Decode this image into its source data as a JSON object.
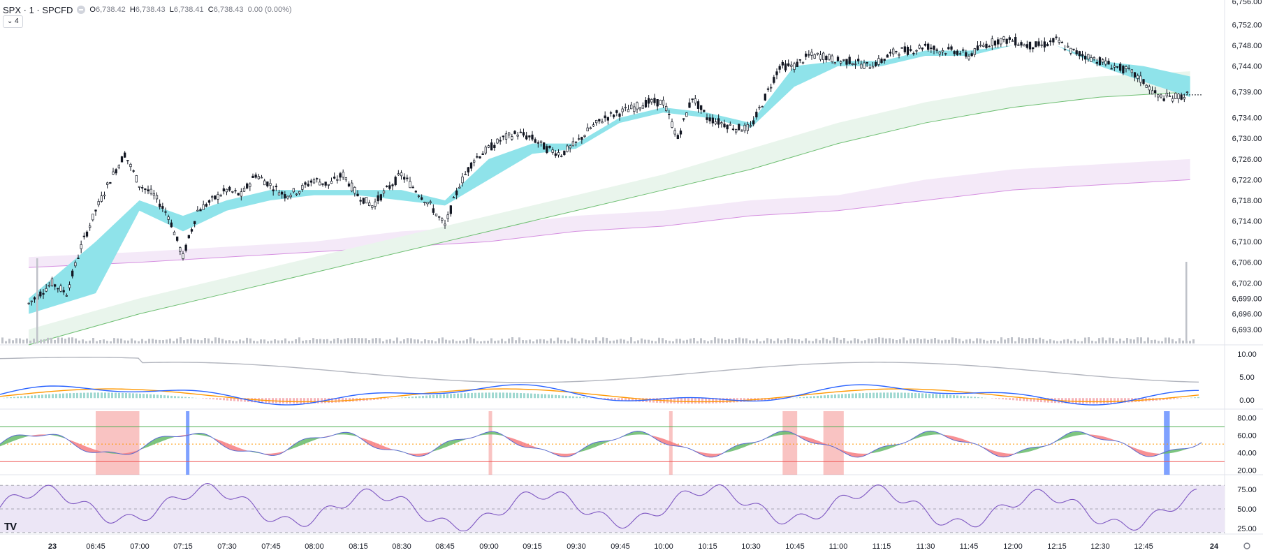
{
  "header": {
    "symbol": "SPX · 1 · SPCFD",
    "ohlc": [
      {
        "k": "O",
        "v": "6,738.42"
      },
      {
        "k": "H",
        "v": "6,738.43"
      },
      {
        "k": "L",
        "v": "6,738.41"
      },
      {
        "k": "C",
        "v": "6,738.43"
      }
    ],
    "change": "0.00 (0.00%)",
    "indicators_toggle": "⌄ 4"
  },
  "logo_text": "TV",
  "time_axis": {
    "labels": [
      "23",
      "06:45",
      "07:00",
      "07:15",
      "07:30",
      "07:45",
      "08:00",
      "08:15",
      "08:30",
      "08:45",
      "09:00",
      "09:15",
      "09:30",
      "09:45",
      "10:00",
      "10:15",
      "10:30",
      "10:45",
      "11:00",
      "11:15",
      "11:30",
      "11:45",
      "12:00",
      "12:15",
      "12:30",
      "12:45",
      "24"
    ],
    "bold_labels": [
      "23",
      "24"
    ]
  },
  "chart_data": [
    {
      "type": "candlestick",
      "price_axis_labels": [
        "6,752.00",
        "6,748.00",
        "6,744.00",
        "6,739.00",
        "6,734.00",
        "6,730.00",
        "6,726.00",
        "6,722.00",
        "6,718.00",
        "6,714.00",
        "6,710.00",
        "6,706.00",
        "6,702.00",
        "6,699.00",
        "6,696.00",
        "6,693.00"
      ],
      "top_partial_label": "6,756.00",
      "ylim": [
        6690,
        6756
      ],
      "x_time_range": [
        "06:22",
        "13:01"
      ],
      "close_path": [
        [
          "06:22",
          6698
        ],
        [
          "06:30",
          6702
        ],
        [
          "06:35",
          6700
        ],
        [
          "06:40",
          6709
        ],
        [
          "06:45",
          6716
        ],
        [
          "06:50",
          6722
        ],
        [
          "06:55",
          6727
        ],
        [
          "07:00",
          6721
        ],
        [
          "07:05",
          6719
        ],
        [
          "07:10",
          6715
        ],
        [
          "07:15",
          6707
        ],
        [
          "07:20",
          6716
        ],
        [
          "07:25",
          6718
        ],
        [
          "07:30",
          6720
        ],
        [
          "07:35",
          6719
        ],
        [
          "07:40",
          6723
        ],
        [
          "07:45",
          6721
        ],
        [
          "07:50",
          6719
        ],
        [
          "07:55",
          6720
        ],
        [
          "08:00",
          6722
        ],
        [
          "08:05",
          6721
        ],
        [
          "08:10",
          6723
        ],
        [
          "08:15",
          6719
        ],
        [
          "08:20",
          6717
        ],
        [
          "08:25",
          6720
        ],
        [
          "08:30",
          6723
        ],
        [
          "08:35",
          6720
        ],
        [
          "08:40",
          6717
        ],
        [
          "08:45",
          6713
        ],
        [
          "08:50",
          6721
        ],
        [
          "08:55",
          6726
        ],
        [
          "09:00",
          6728
        ],
        [
          "09:05",
          6730
        ],
        [
          "09:10",
          6731
        ],
        [
          "09:15",
          6730
        ],
        [
          "09:20",
          6728
        ],
        [
          "09:25",
          6727
        ],
        [
          "09:30",
          6729
        ],
        [
          "09:35",
          6732
        ],
        [
          "09:40",
          6734
        ],
        [
          "09:45",
          6735
        ],
        [
          "09:50",
          6736
        ],
        [
          "09:55",
          6737
        ],
        [
          "10:00",
          6737
        ],
        [
          "10:05",
          6730
        ],
        [
          "10:10",
          6738
        ],
        [
          "10:15",
          6734
        ],
        [
          "10:20",
          6733
        ],
        [
          "10:25",
          6732
        ],
        [
          "10:30",
          6732
        ],
        [
          "10:35",
          6738
        ],
        [
          "10:40",
          6744
        ],
        [
          "10:45",
          6744
        ],
        [
          "10:50",
          6746
        ],
        [
          "10:55",
          6746
        ],
        [
          "11:00",
          6745
        ],
        [
          "11:05",
          6745
        ],
        [
          "11:10",
          6744
        ],
        [
          "11:15",
          6745
        ],
        [
          "11:20",
          6747
        ],
        [
          "11:25",
          6747
        ],
        [
          "11:30",
          6748
        ],
        [
          "11:35",
          6747
        ],
        [
          "11:40",
          6747
        ],
        [
          "11:45",
          6746
        ],
        [
          "11:50",
          6748
        ],
        [
          "11:55",
          6749
        ],
        [
          "12:00",
          6749
        ],
        [
          "12:05",
          6748
        ],
        [
          "12:10",
          6748
        ],
        [
          "12:15",
          6749
        ],
        [
          "12:20",
          6747
        ],
        [
          "12:25",
          6746
        ],
        [
          "12:30",
          6745
        ],
        [
          "12:35",
          6744
        ],
        [
          "12:40",
          6743
        ],
        [
          "12:45",
          6741
        ],
        [
          "12:50",
          6738
        ],
        [
          "12:55",
          6738
        ],
        [
          "13:01",
          6738.43
        ]
      ],
      "ema_band_fast": [
        [
          "06:22",
          6696,
          6699
        ],
        [
          "06:45",
          6700,
          6710
        ],
        [
          "07:00",
          6716,
          6718
        ],
        [
          "07:15",
          6712,
          6715
        ],
        [
          "07:30",
          6716,
          6718
        ],
        [
          "07:45",
          6718,
          6720
        ],
        [
          "08:00",
          6719,
          6720
        ],
        [
          "08:15",
          6719,
          6720
        ],
        [
          "08:30",
          6718,
          6720
        ],
        [
          "08:45",
          6717,
          6718
        ],
        [
          "09:00",
          6722,
          6726
        ],
        [
          "09:15",
          6727,
          6729
        ],
        [
          "09:30",
          6728,
          6729
        ],
        [
          "09:45",
          6733,
          6734
        ],
        [
          "10:00",
          6735,
          6736
        ],
        [
          "10:15",
          6734,
          6735
        ],
        [
          "10:30",
          6732,
          6733
        ],
        [
          "10:45",
          6740,
          6744
        ],
        [
          "11:00",
          6744,
          6745
        ],
        [
          "11:15",
          6744,
          6745
        ],
        [
          "11:30",
          6746,
          6747
        ],
        [
          "11:45",
          6746,
          6747
        ],
        [
          "12:00",
          6748,
          6748
        ],
        [
          "12:15",
          6748,
          6748
        ],
        [
          "12:30",
          6744,
          6745
        ],
        [
          "12:45",
          6741,
          6744
        ],
        [
          "13:01",
          6738,
          6742
        ]
      ],
      "ema_band_slow": [
        [
          "06:22",
          6690,
          6693
        ],
        [
          "07:00",
          6696,
          6699
        ],
        [
          "07:30",
          6700,
          6703
        ],
        [
          "08:00",
          6704,
          6707
        ],
        [
          "08:30",
          6708,
          6711
        ],
        [
          "09:00",
          6712,
          6715
        ],
        [
          "09:30",
          6716,
          6719
        ],
        [
          "10:00",
          6720,
          6723
        ],
        [
          "10:30",
          6724,
          6728
        ],
        [
          "11:00",
          6729,
          6733
        ],
        [
          "11:30",
          6733,
          6737
        ],
        [
          "12:00",
          6736,
          6740
        ],
        [
          "12:30",
          6738,
          6742
        ],
        [
          "13:01",
          6739,
          6743
        ]
      ],
      "ema_band_long": [
        [
          "06:22",
          6705,
          6707
        ],
        [
          "07:00",
          6706,
          6708
        ],
        [
          "07:30",
          6707,
          6709
        ],
        [
          "08:00",
          6708,
          6710
        ],
        [
          "08:30",
          6709,
          6712
        ],
        [
          "09:00",
          6710,
          6713
        ],
        [
          "09:30",
          6712,
          6715
        ],
        [
          "10:00",
          6713,
          6716
        ],
        [
          "10:30",
          6715,
          6718
        ],
        [
          "11:00",
          6716,
          6719
        ],
        [
          "11:30",
          6718,
          6722
        ],
        [
          "12:00",
          6720,
          6724
        ],
        [
          "12:30",
          6721,
          6725
        ],
        [
          "13:01",
          6722,
          6726
        ]
      ]
    },
    {
      "type": "line",
      "name_text": "",
      "y_axis_labels": [
        "10.00",
        "5.00",
        "0.00"
      ],
      "ylim": [
        -2,
        12
      ]
    },
    {
      "type": "line",
      "y_axis_labels": [
        "80.00",
        "60.00",
        "40.00",
        "20.00"
      ],
      "ylim": [
        15,
        90
      ],
      "levels": [
        70,
        50,
        30
      ],
      "highlight_zones_time": [
        [
          "06:45",
          "07:00"
        ],
        [
          "07:16",
          "07:17"
        ],
        [
          "09:00",
          "09:01"
        ],
        [
          "10:02",
          "10:03"
        ],
        [
          "10:41",
          "10:46"
        ],
        [
          "10:55",
          "11:02"
        ],
        [
          "12:52",
          "12:54"
        ]
      ]
    },
    {
      "type": "line",
      "y_axis_labels": [
        "75.00",
        "50.00",
        "25.00"
      ],
      "ylim": [
        18,
        90
      ],
      "levels": [
        80,
        50,
        20
      ]
    }
  ],
  "colors": {
    "up": "#26a69a",
    "down": "#ef5350",
    "candle": "#131722",
    "ema_up": "#8fe3ea",
    "ema_down": "#f9c2c8",
    "ema_slow": "#e9f5ec",
    "ema_slow_line": "#6fbf73",
    "ema_long": "#f4e9f8",
    "ema_long_line": "#d58fe0",
    "rsi": "#7e57c2",
    "rsi_bg": "#ece6f6"
  }
}
